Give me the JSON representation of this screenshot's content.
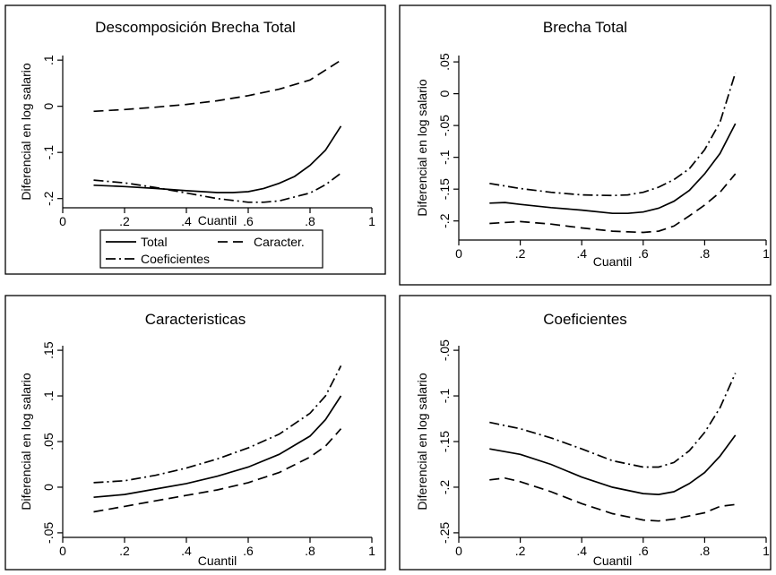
{
  "chart_data": [
    {
      "type": "line",
      "title": "Descomposición Brecha Total",
      "xlabel": "Cuantil",
      "ylabel": "Diferencial en log salario",
      "xlim": [
        0,
        1
      ],
      "ylim": [
        -0.22,
        0.11
      ],
      "xticks": [
        0,
        0.2,
        0.4,
        0.6,
        0.8,
        1
      ],
      "xtick_labels": [
        "0",
        ".2",
        ".4",
        ".6",
        ".8",
        "1"
      ],
      "yticks": [
        -0.2,
        -0.1,
        0,
        0.1
      ],
      "ytick_labels": [
        "-.2",
        "-.1",
        "0",
        ".1"
      ],
      "legend": {
        "position": "bottom",
        "entries": [
          "Total",
          "Caracter.",
          "Coeficientes"
        ]
      },
      "grid": false,
      "series": [
        {
          "name": "Total",
          "style": "solid",
          "x": [
            0.1,
            0.2,
            0.3,
            0.4,
            0.5,
            0.55,
            0.6,
            0.65,
            0.7,
            0.75,
            0.8,
            0.85,
            0.9
          ],
          "y": [
            -0.171,
            -0.174,
            -0.178,
            -0.183,
            -0.187,
            -0.187,
            -0.185,
            -0.178,
            -0.167,
            -0.152,
            -0.128,
            -0.095,
            -0.043
          ]
        },
        {
          "name": "Caracter.",
          "style": "dash",
          "x": [
            0.1,
            0.2,
            0.3,
            0.4,
            0.5,
            0.6,
            0.7,
            0.8,
            0.9
          ],
          "y": [
            -0.011,
            -0.007,
            -0.002,
            0.004,
            0.012,
            0.023,
            0.037,
            0.057,
            0.1
          ]
        },
        {
          "name": "Coeficientes",
          "style": "dashdot",
          "x": [
            0.1,
            0.2,
            0.3,
            0.4,
            0.5,
            0.6,
            0.65,
            0.7,
            0.8,
            0.85,
            0.9
          ],
          "y": [
            -0.16,
            -0.166,
            -0.176,
            -0.188,
            -0.2,
            -0.208,
            -0.208,
            -0.205,
            -0.188,
            -0.17,
            -0.145
          ]
        }
      ]
    },
    {
      "type": "line",
      "title": "Brecha Total",
      "xlabel": "Cuantil",
      "ylabel": "Diferencial en log salario",
      "xlim": [
        0,
        1
      ],
      "ylim": [
        -0.23,
        0.06
      ],
      "xticks": [
        0,
        0.2,
        0.4,
        0.6,
        0.8,
        1
      ],
      "xtick_labels": [
        "0",
        ".2",
        ".4",
        ".6",
        ".8",
        "1"
      ],
      "yticks": [
        -0.2,
        -0.15,
        -0.1,
        -0.05,
        0,
        0.05
      ],
      "ytick_labels": [
        "-.2",
        "-.15",
        "-.1",
        "-.05",
        "0",
        ".05"
      ],
      "grid": false,
      "series": [
        {
          "style": "dashdot",
          "x": [
            0.1,
            0.2,
            0.3,
            0.4,
            0.5,
            0.55,
            0.6,
            0.65,
            0.7,
            0.75,
            0.8,
            0.85,
            0.9
          ],
          "y": [
            -0.141,
            -0.149,
            -0.155,
            -0.159,
            -0.16,
            -0.159,
            -0.155,
            -0.147,
            -0.135,
            -0.118,
            -0.088,
            -0.045,
            0.033
          ]
        },
        {
          "style": "solid",
          "x": [
            0.1,
            0.15,
            0.2,
            0.3,
            0.4,
            0.5,
            0.55,
            0.6,
            0.65,
            0.7,
            0.75,
            0.8,
            0.85,
            0.9
          ],
          "y": [
            -0.172,
            -0.171,
            -0.174,
            -0.179,
            -0.183,
            -0.188,
            -0.188,
            -0.186,
            -0.18,
            -0.169,
            -0.152,
            -0.126,
            -0.094,
            -0.047
          ]
        },
        {
          "style": "dash",
          "x": [
            0.1,
            0.2,
            0.3,
            0.4,
            0.5,
            0.6,
            0.65,
            0.7,
            0.75,
            0.8,
            0.85,
            0.9
          ],
          "y": [
            -0.204,
            -0.201,
            -0.205,
            -0.211,
            -0.216,
            -0.218,
            -0.216,
            -0.208,
            -0.192,
            -0.175,
            -0.155,
            -0.126
          ]
        }
      ]
    },
    {
      "type": "line",
      "title": "Caracteristicas",
      "xlabel": "Cuantil",
      "ylabel": "Diferencial en log salario",
      "xlim": [
        0,
        1
      ],
      "ylim": [
        -0.055,
        0.155
      ],
      "xticks": [
        0,
        0.2,
        0.4,
        0.6,
        0.8,
        1
      ],
      "xtick_labels": [
        "0",
        ".2",
        ".4",
        ".6",
        ".8",
        "1"
      ],
      "yticks": [
        -0.05,
        0,
        0.05,
        0.1,
        0.15
      ],
      "ytick_labels": [
        "-.05",
        "0",
        ".05",
        ".1",
        ".15"
      ],
      "grid": false,
      "series": [
        {
          "style": "dashdot",
          "x": [
            0.1,
            0.2,
            0.3,
            0.4,
            0.5,
            0.6,
            0.7,
            0.8,
            0.85,
            0.9
          ],
          "y": [
            0.005,
            0.007,
            0.013,
            0.021,
            0.031,
            0.043,
            0.058,
            0.081,
            0.1,
            0.133
          ]
        },
        {
          "style": "solid",
          "x": [
            0.1,
            0.2,
            0.3,
            0.4,
            0.5,
            0.6,
            0.7,
            0.8,
            0.85,
            0.9
          ],
          "y": [
            -0.011,
            -0.008,
            -0.002,
            0.004,
            0.012,
            0.022,
            0.036,
            0.056,
            0.074,
            0.1
          ]
        },
        {
          "style": "dash",
          "x": [
            0.1,
            0.2,
            0.3,
            0.4,
            0.5,
            0.6,
            0.7,
            0.8,
            0.85,
            0.9
          ],
          "y": [
            -0.027,
            -0.021,
            -0.015,
            -0.009,
            -0.003,
            0.005,
            0.016,
            0.033,
            0.045,
            0.064
          ]
        }
      ]
    },
    {
      "type": "line",
      "title": "Coeficientes",
      "xlabel": "Cuantil",
      "ylabel": "Diferencial en log salario",
      "xlim": [
        0,
        1
      ],
      "ylim": [
        -0.255,
        -0.045
      ],
      "xticks": [
        0,
        0.2,
        0.4,
        0.6,
        0.8,
        1
      ],
      "xtick_labels": [
        "0",
        ".2",
        ".4",
        ".6",
        ".8",
        "1"
      ],
      "yticks": [
        -0.25,
        -0.2,
        -0.15,
        -0.1,
        -0.05
      ],
      "ytick_labels": [
        "-.25",
        "-.2",
        "-.15",
        "-.1",
        "-.05"
      ],
      "grid": false,
      "series": [
        {
          "style": "dashdot",
          "x": [
            0.1,
            0.2,
            0.3,
            0.4,
            0.5,
            0.6,
            0.65,
            0.7,
            0.75,
            0.8,
            0.85,
            0.9
          ],
          "y": [
            -0.129,
            -0.136,
            -0.146,
            -0.158,
            -0.171,
            -0.178,
            -0.178,
            -0.173,
            -0.16,
            -0.14,
            -0.113,
            -0.075
          ]
        },
        {
          "style": "solid",
          "x": [
            0.1,
            0.2,
            0.3,
            0.4,
            0.5,
            0.6,
            0.65,
            0.7,
            0.75,
            0.8,
            0.85,
            0.9
          ],
          "y": [
            -0.158,
            -0.164,
            -0.175,
            -0.189,
            -0.2,
            -0.207,
            -0.208,
            -0.205,
            -0.196,
            -0.184,
            -0.166,
            -0.143
          ]
        },
        {
          "style": "dash",
          "x": [
            0.1,
            0.15,
            0.2,
            0.3,
            0.4,
            0.5,
            0.6,
            0.65,
            0.7,
            0.8,
            0.85,
            0.9
          ],
          "y": [
            -0.192,
            -0.19,
            -0.194,
            -0.205,
            -0.218,
            -0.229,
            -0.236,
            -0.237,
            -0.235,
            -0.228,
            -0.221,
            -0.219
          ]
        }
      ]
    }
  ]
}
